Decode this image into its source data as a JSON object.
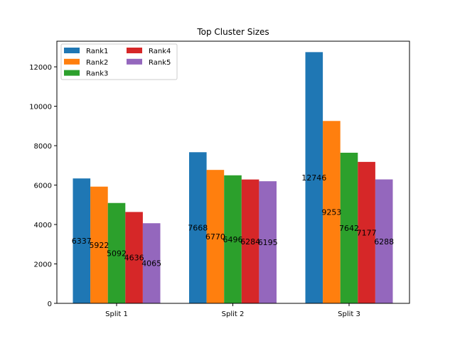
{
  "chart_data": {
    "type": "bar",
    "title": "Top Cluster Sizes",
    "xlabel": "",
    "ylabel": "",
    "categories": [
      "Split 1",
      "Split 2",
      "Split 3"
    ],
    "ylim": [
      0,
      13300
    ],
    "yticks": [
      0,
      2000,
      4000,
      6000,
      8000,
      10000,
      12000
    ],
    "grid": false,
    "legend_position": "top-left",
    "legend_columns": 2,
    "series": [
      {
        "name": "Rank1",
        "color": "#1f77b4",
        "values": [
          6337,
          7668,
          12746
        ]
      },
      {
        "name": "Rank2",
        "color": "#ff7f0e",
        "values": [
          5922,
          6770,
          9253
        ]
      },
      {
        "name": "Rank3",
        "color": "#2ca02c",
        "values": [
          5092,
          6496,
          7642
        ]
      },
      {
        "name": "Rank4",
        "color": "#d62728",
        "values": [
          4636,
          6284,
          7177
        ]
      },
      {
        "name": "Rank5",
        "color": "#9467bd",
        "values": [
          4065,
          6195,
          6288
        ]
      }
    ]
  }
}
